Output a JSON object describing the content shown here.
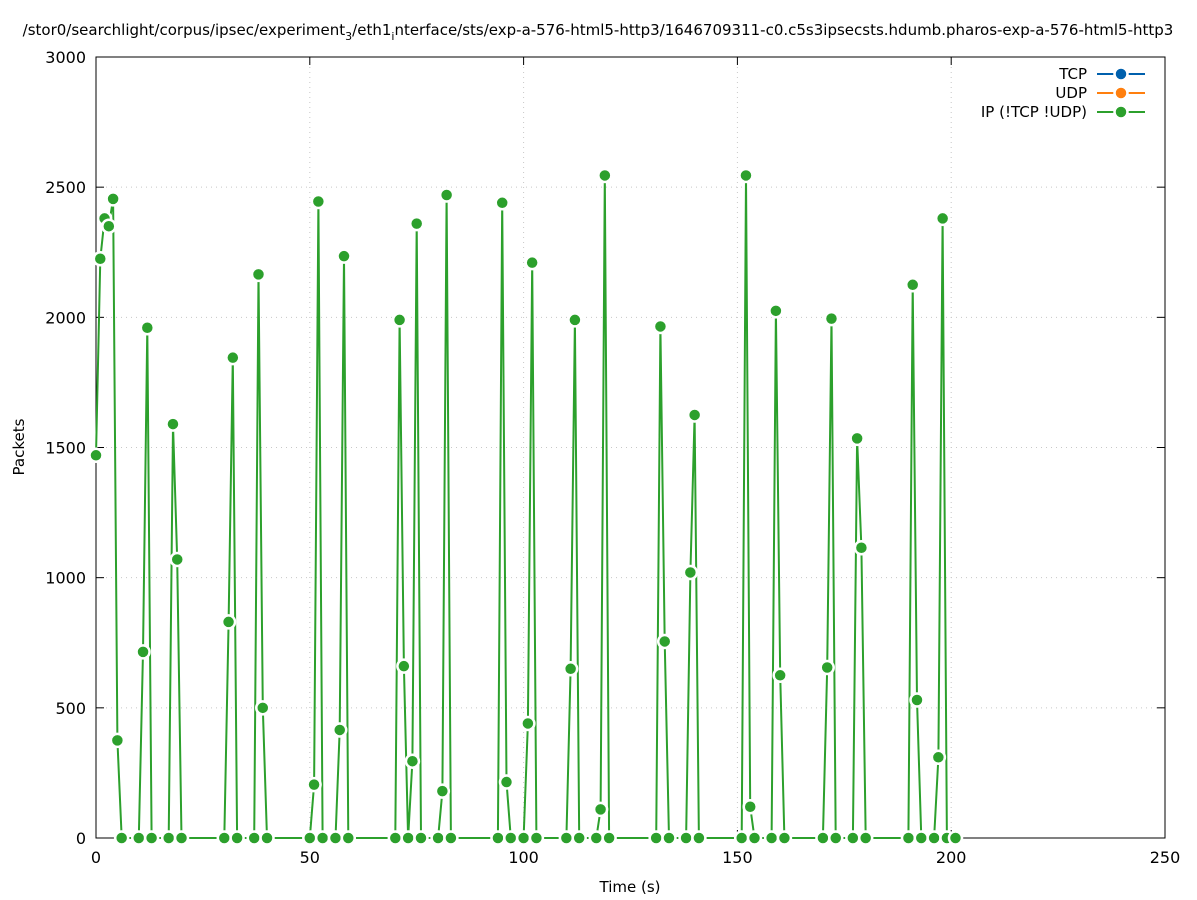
{
  "chart_data": {
    "type": "line",
    "title": "/stor0/searchlight/corpus/ipsec/experiment",
    "title_sub": "3",
    "title_mid": "/eth1",
    "title_sub2": "i",
    "title_rest": "nterface/sts/exp-a-576-html5-http3/1646709311-c0.c5s3ipsecsts.hdumb.pharos-exp-a-576-html5-http3",
    "xlabel": "Time (s)",
    "ylabel": "Packets",
    "xlim": [
      0,
      250
    ],
    "ylim": [
      0,
      3000
    ],
    "xticks": [
      0,
      50,
      100,
      150,
      200,
      250
    ],
    "yticks": [
      0,
      500,
      1000,
      1500,
      2000,
      2500,
      3000
    ],
    "grid": true,
    "legend_position": "top-right",
    "series": [
      {
        "name": "TCP",
        "color": "#0060ad",
        "points": []
      },
      {
        "name": "UDP",
        "color": "#ff7f0e",
        "points": []
      },
      {
        "name": "IP (!TCP  !UDP)",
        "color": "#2ca02c",
        "points": [
          [
            0,
            1470
          ],
          [
            1,
            2225
          ],
          [
            2,
            2380
          ],
          [
            3,
            2350
          ],
          [
            4,
            2455
          ],
          [
            5,
            375
          ],
          [
            6,
            0
          ],
          [
            10,
            0
          ],
          [
            11,
            715
          ],
          [
            12,
            1960
          ],
          [
            13,
            0
          ],
          [
            17,
            0
          ],
          [
            18,
            1590
          ],
          [
            19,
            1070
          ],
          [
            20,
            0
          ],
          [
            30,
            0
          ],
          [
            31,
            830
          ],
          [
            32,
            1845
          ],
          [
            33,
            0
          ],
          [
            37,
            0
          ],
          [
            38,
            2165
          ],
          [
            39,
            500
          ],
          [
            40,
            0
          ],
          [
            50,
            0
          ],
          [
            51,
            205
          ],
          [
            52,
            2445
          ],
          [
            53,
            0
          ],
          [
            56,
            0
          ],
          [
            57,
            415
          ],
          [
            58,
            2235
          ],
          [
            59,
            0
          ],
          [
            70,
            0
          ],
          [
            71,
            1990
          ],
          [
            72,
            660
          ],
          [
            73,
            0
          ],
          [
            74,
            295
          ],
          [
            75,
            2360
          ],
          [
            76,
            0
          ],
          [
            80,
            0
          ],
          [
            81,
            180
          ],
          [
            82,
            2470
          ],
          [
            83,
            0
          ],
          [
            94,
            0
          ],
          [
            95,
            2440
          ],
          [
            96,
            215
          ],
          [
            97,
            0
          ],
          [
            100,
            0
          ],
          [
            101,
            440
          ],
          [
            102,
            2210
          ],
          [
            103,
            0
          ],
          [
            110,
            0
          ],
          [
            111,
            650
          ],
          [
            112,
            1990
          ],
          [
            113,
            0
          ],
          [
            117,
            0
          ],
          [
            118,
            110
          ],
          [
            119,
            2545
          ],
          [
            120,
            0
          ],
          [
            131,
            0
          ],
          [
            132,
            1965
          ],
          [
            133,
            755
          ],
          [
            134,
            0
          ],
          [
            138,
            0
          ],
          [
            139,
            1020
          ],
          [
            140,
            1625
          ],
          [
            141,
            0
          ],
          [
            151,
            0
          ],
          [
            152,
            2545
          ],
          [
            153,
            120
          ],
          [
            154,
            0
          ],
          [
            158,
            0
          ],
          [
            159,
            2025
          ],
          [
            160,
            625
          ],
          [
            161,
            0
          ],
          [
            170,
            0
          ],
          [
            171,
            655
          ],
          [
            172,
            1995
          ],
          [
            173,
            0
          ],
          [
            177,
            0
          ],
          [
            178,
            1535
          ],
          [
            179,
            1115
          ],
          [
            180,
            0
          ],
          [
            190,
            0
          ],
          [
            191,
            2125
          ],
          [
            192,
            530
          ],
          [
            193,
            0
          ],
          [
            196,
            0
          ],
          [
            197,
            310
          ],
          [
            198,
            2380
          ],
          [
            199,
            0
          ],
          [
            201,
            0
          ]
        ]
      }
    ]
  }
}
